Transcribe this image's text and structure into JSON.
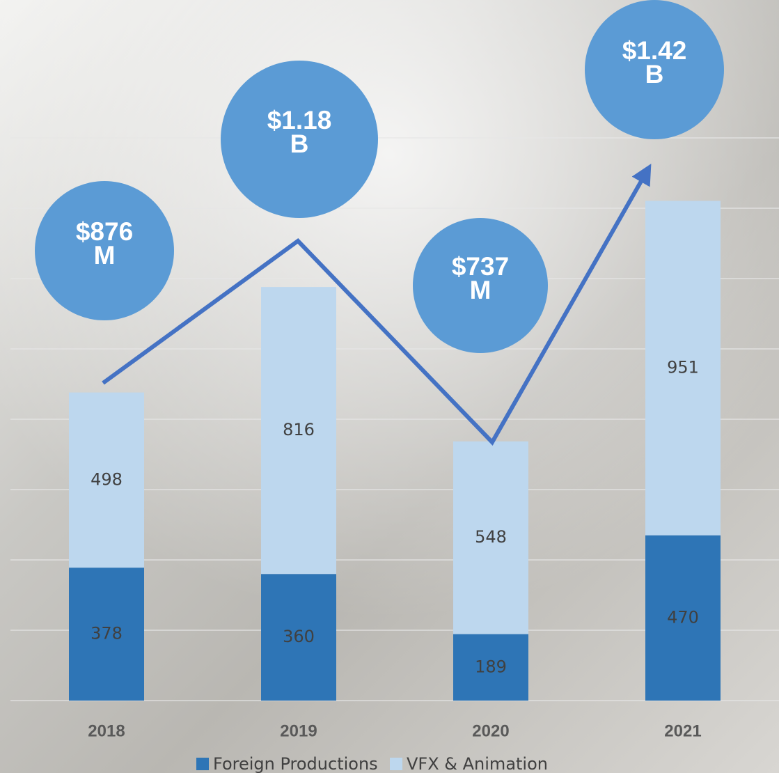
{
  "chart_data": {
    "type": "stacked_bar",
    "categories": [
      "2018",
      "2019",
      "2020",
      "2021"
    ],
    "series": [
      {
        "name": "Foreign Productions",
        "color": "#2e75b6",
        "values": [
          378,
          360,
          189,
          470
        ]
      },
      {
        "name": "VFX & Animation",
        "color": "#bdd7ee",
        "values": [
          498,
          816,
          548,
          951
        ]
      }
    ],
    "ylim": [
      0,
      1600
    ],
    "yticks": [
      0,
      200,
      400,
      600,
      800,
      1000,
      1200,
      1400,
      1600
    ],
    "grid": true,
    "legend": "bottom",
    "annotations": [
      {
        "lines": [
          "$876",
          "M"
        ]
      },
      {
        "lines": [
          "$1.18",
          "B"
        ]
      },
      {
        "lines": [
          "$737",
          "M"
        ]
      },
      {
        "lines": [
          "$1.42",
          "B"
        ]
      }
    ]
  }
}
